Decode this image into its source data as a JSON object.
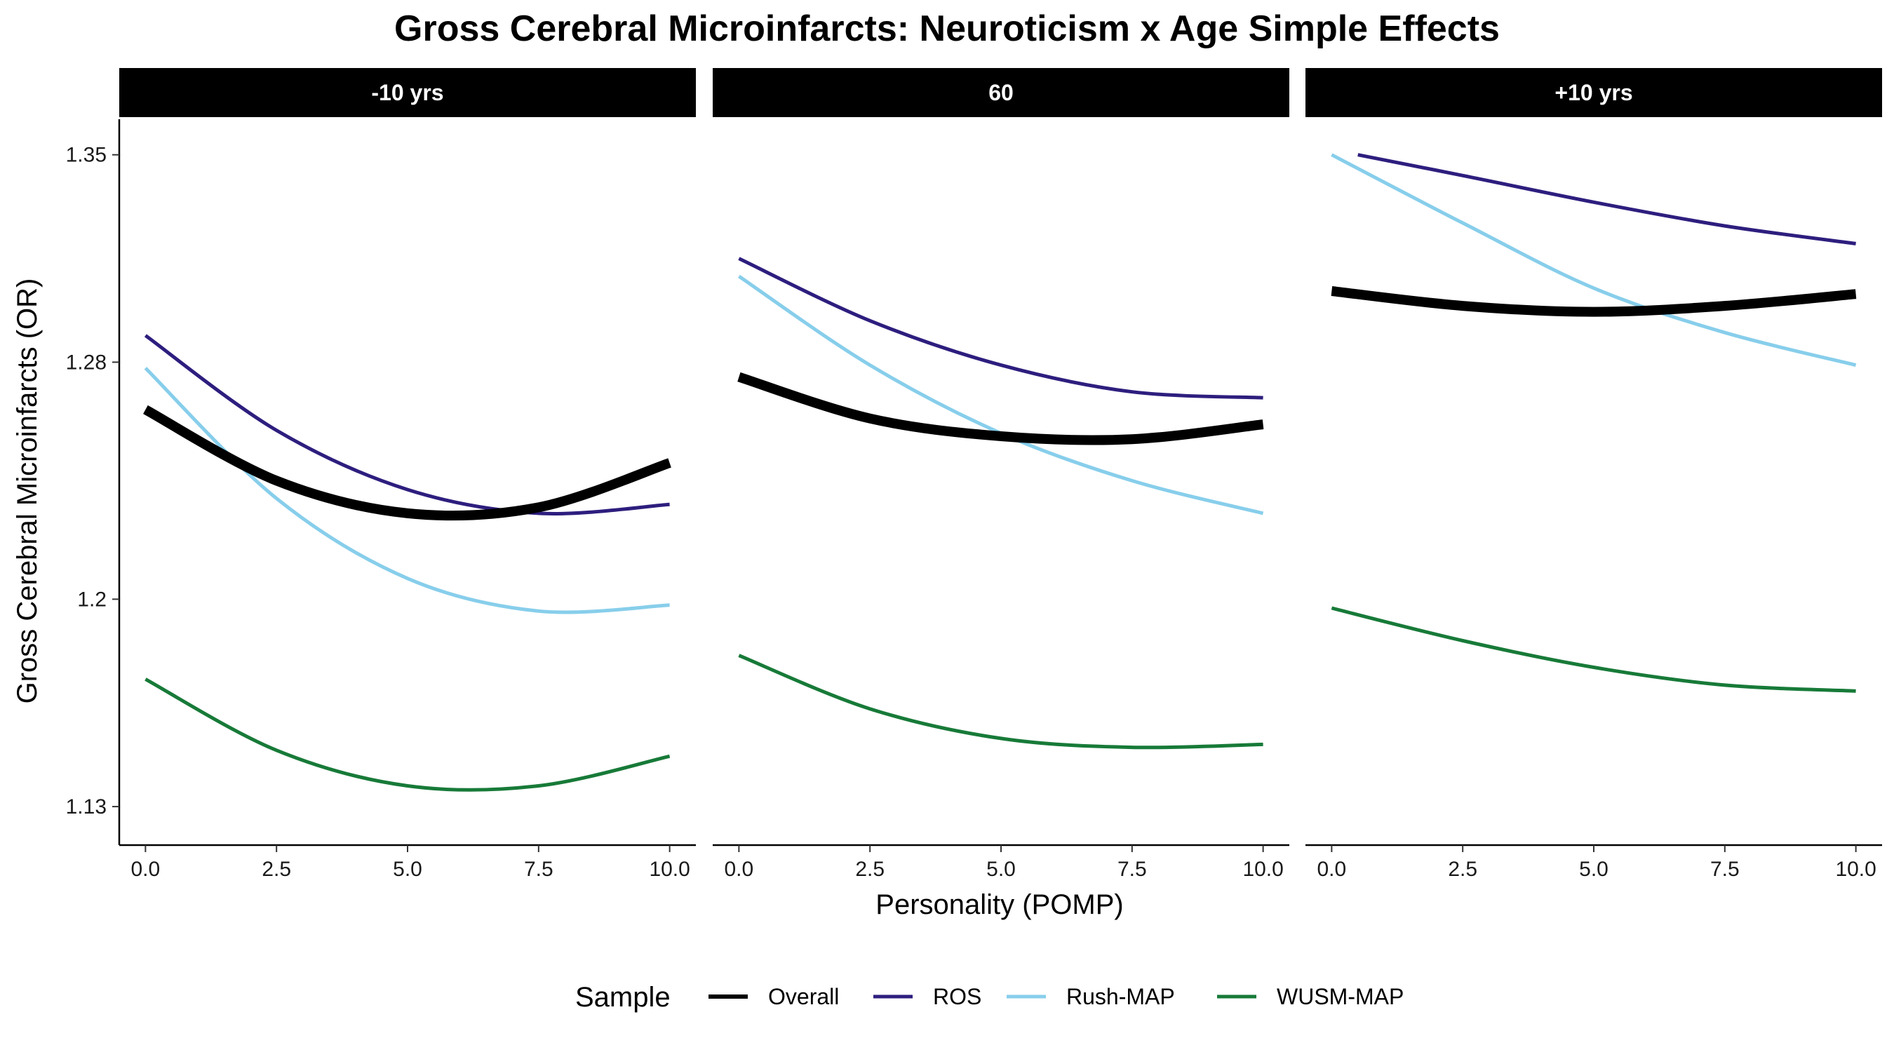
{
  "chart_data": {
    "type": "line",
    "title": "Gross Cerebral Microinfarcts: Neuroticism x Age Simple Effects",
    "xlabel": "Personality (POMP)",
    "ylabel": "Gross Cerebral Microinfarcts (OR)",
    "xlim": [
      -0.5,
      10.5
    ],
    "ylim": [
      1.117,
      1.362
    ],
    "x_ticks": [
      "0.0",
      "2.5",
      "5.0",
      "7.5",
      "10.0"
    ],
    "x_tick_values": [
      0,
      2.5,
      5,
      7.5,
      10
    ],
    "y_ticks": [
      "1.13",
      "1.2",
      "1.28",
      "1.35"
    ],
    "y_tick_values": [
      1.13,
      1.2,
      1.28,
      1.35
    ],
    "legend": {
      "title": "Sample",
      "position": "bottom",
      "entries": [
        "Overall",
        "ROS",
        "Rush-MAP",
        "WUSM-MAP"
      ]
    },
    "series_style": {
      "Overall": {
        "color": "#000000",
        "thick": true
      },
      "ROS": {
        "color": "#2d1e7e",
        "thick": false
      },
      "Rush-MAP": {
        "color": "#87ceeb",
        "thick": false
      },
      "WUSM-MAP": {
        "color": "#177a38",
        "thick": false
      }
    },
    "panels": [
      {
        "label": "-10 yrs",
        "series": [
          {
            "name": "Overall",
            "x": [
              0,
              2.5,
              5,
              7.5,
              10
            ],
            "y": [
              1.264,
              1.24,
              1.229,
              1.231,
              1.246
            ]
          },
          {
            "name": "ROS",
            "x": [
              0,
              2.5,
              5,
              7.5,
              10
            ],
            "y": [
              1.289,
              1.257,
              1.237,
              1.229,
              1.232
            ]
          },
          {
            "name": "Rush-MAP",
            "x": [
              0,
              2.5,
              5,
              7.5,
              10
            ],
            "y": [
              1.278,
              1.234,
              1.207,
              1.196,
              1.198
            ]
          },
          {
            "name": "WUSM-MAP",
            "x": [
              0,
              2.5,
              5,
              7.5,
              10
            ],
            "y": [
              1.173,
              1.149,
              1.137,
              1.137,
              1.147
            ]
          }
        ]
      },
      {
        "label": "60",
        "series": [
          {
            "name": "Overall",
            "x": [
              0,
              2.5,
              5,
              7.5,
              10
            ],
            "y": [
              1.275,
              1.261,
              1.255,
              1.254,
              1.259
            ]
          },
          {
            "name": "ROS",
            "x": [
              0,
              2.5,
              5,
              7.5,
              10
            ],
            "y": [
              1.315,
              1.294,
              1.279,
              1.27,
              1.268
            ]
          },
          {
            "name": "Rush-MAP",
            "x": [
              0,
              2.5,
              5,
              7.5,
              10
            ],
            "y": [
              1.309,
              1.279,
              1.256,
              1.24,
              1.229
            ]
          },
          {
            "name": "WUSM-MAP",
            "x": [
              0,
              2.5,
              5,
              7.5,
              10
            ],
            "y": [
              1.181,
              1.163,
              1.153,
              1.15,
              1.151
            ]
          }
        ]
      },
      {
        "label": "+10 yrs",
        "series": [
          {
            "name": "Overall",
            "x": [
              0,
              2.5,
              5,
              7.5,
              10
            ],
            "y": [
              1.304,
              1.299,
              1.297,
              1.299,
              1.303
            ]
          },
          {
            "name": "ROS",
            "x": [
              0.5,
              2.5,
              5,
              7.5,
              10
            ],
            "y": [
              1.35,
              1.343,
              1.334,
              1.326,
              1.32
            ]
          },
          {
            "name": "Rush-MAP",
            "x": [
              0,
              2.5,
              5,
              7.5,
              10
            ],
            "y": [
              1.35,
              1.327,
              1.305,
              1.29,
              1.279
            ]
          },
          {
            "name": "WUSM-MAP",
            "x": [
              0,
              2.5,
              5,
              7.5,
              10
            ],
            "y": [
              1.197,
              1.186,
              1.177,
              1.171,
              1.169
            ]
          }
        ]
      }
    ]
  }
}
